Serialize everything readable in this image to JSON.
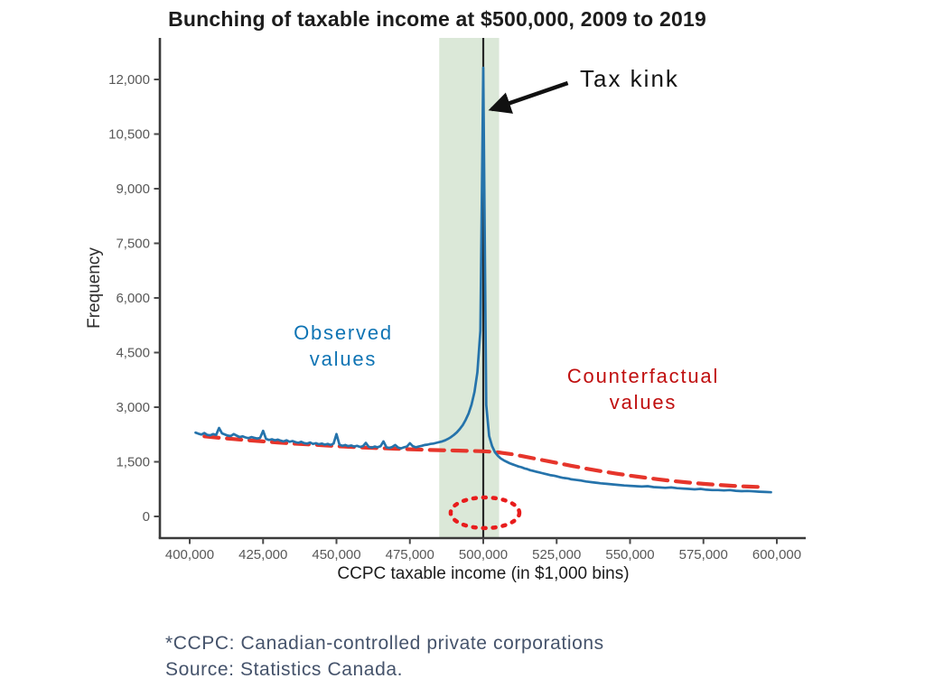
{
  "chart_data": {
    "type": "line",
    "title": "Bunching of taxable income at $500,000, 2009 to 2019",
    "xlabel": "CCPC taxable income (in $1,000 bins)",
    "ylabel": "Frequency",
    "x_units_note": "x values listed in $1,000s",
    "xlim_k": [
      390,
      610
    ],
    "ylim": [
      0,
      12600
    ],
    "grid": false,
    "legend": "none (inline colored text labels instead)",
    "x_axis": {
      "tick_values_k": [
        400,
        425,
        450,
        475,
        500,
        525,
        550,
        575,
        600
      ],
      "tick_labels": [
        "400,000",
        "425,000",
        "450,000",
        "475,000",
        "500,000",
        "525,000",
        "550,000",
        "575,000",
        "600,000"
      ]
    },
    "y_axis": {
      "tick_values": [
        0,
        1500,
        3000,
        4500,
        6000,
        7500,
        9000,
        10500,
        12000
      ],
      "tick_labels": [
        "0",
        "1,500",
        "3,000",
        "4,500",
        "6,000",
        "7,500",
        "9,000",
        "10,500",
        "12,000"
      ]
    },
    "bunching_window": {
      "x0_k": 485,
      "x1_k": 505.4,
      "color": "#dbe8d8"
    },
    "kink_line_x_k": 500,
    "kink_line_color": "#262626",
    "series": [
      {
        "name": "Observed values",
        "color": "#2573ab",
        "style": "solid",
        "points": [
          [
            402,
            2300
          ],
          [
            403,
            2270
          ],
          [
            404,
            2250
          ],
          [
            405,
            2290
          ],
          [
            406,
            2240
          ],
          [
            407,
            2230
          ],
          [
            408,
            2260
          ],
          [
            409,
            2240
          ],
          [
            410,
            2430
          ],
          [
            411,
            2280
          ],
          [
            412,
            2250
          ],
          [
            413,
            2220
          ],
          [
            414,
            2210
          ],
          [
            415,
            2260
          ],
          [
            416,
            2220
          ],
          [
            417,
            2180
          ],
          [
            418,
            2200
          ],
          [
            419,
            2170
          ],
          [
            420,
            2150
          ],
          [
            421,
            2180
          ],
          [
            422,
            2160
          ],
          [
            423,
            2140
          ],
          [
            424,
            2160
          ],
          [
            425,
            2350
          ],
          [
            426,
            2130
          ],
          [
            427,
            2100
          ],
          [
            428,
            2120
          ],
          [
            429,
            2090
          ],
          [
            430,
            2110
          ],
          [
            431,
            2080
          ],
          [
            432,
            2060
          ],
          [
            433,
            2090
          ],
          [
            434,
            2050
          ],
          [
            435,
            2070
          ],
          [
            436,
            2040
          ],
          [
            437,
            2020
          ],
          [
            438,
            2050
          ],
          [
            439,
            2010
          ],
          [
            440,
            2000
          ],
          [
            441,
            2030
          ],
          [
            442,
            1990
          ],
          [
            443,
            2010
          ],
          [
            444,
            1980
          ],
          [
            445,
            2000
          ],
          [
            446,
            1970
          ],
          [
            447,
            1990
          ],
          [
            448,
            1960
          ],
          [
            449,
            2000
          ],
          [
            450,
            2260
          ],
          [
            451,
            1970
          ],
          [
            452,
            1940
          ],
          [
            453,
            1960
          ],
          [
            454,
            1930
          ],
          [
            455,
            1950
          ],
          [
            456,
            1920
          ],
          [
            457,
            1940
          ],
          [
            458,
            1910
          ],
          [
            459,
            1930
          ],
          [
            460,
            2020
          ],
          [
            461,
            1910
          ],
          [
            462,
            1890
          ],
          [
            463,
            1920
          ],
          [
            464,
            1900
          ],
          [
            465,
            1930
          ],
          [
            466,
            2060
          ],
          [
            467,
            1900
          ],
          [
            468,
            1880
          ],
          [
            469,
            1910
          ],
          [
            470,
            1960
          ],
          [
            471,
            1890
          ],
          [
            472,
            1870
          ],
          [
            473,
            1900
          ],
          [
            474,
            1920
          ],
          [
            475,
            2010
          ],
          [
            476,
            1930
          ],
          [
            477,
            1900
          ],
          [
            478,
            1920
          ],
          [
            479,
            1940
          ],
          [
            480,
            1960
          ],
          [
            481,
            1970
          ],
          [
            482,
            1990
          ],
          [
            483,
            2000
          ],
          [
            484,
            2020
          ],
          [
            485,
            2040
          ],
          [
            486,
            2060
          ],
          [
            487,
            2090
          ],
          [
            488,
            2130
          ],
          [
            489,
            2180
          ],
          [
            490,
            2240
          ],
          [
            491,
            2310
          ],
          [
            492,
            2400
          ],
          [
            493,
            2510
          ],
          [
            494,
            2650
          ],
          [
            495,
            2830
          ],
          [
            496,
            3070
          ],
          [
            497,
            3420
          ],
          [
            498,
            3960
          ],
          [
            499,
            5100
          ],
          [
            500,
            12320
          ],
          [
            501,
            3060
          ],
          [
            502,
            2210
          ],
          [
            503,
            1930
          ],
          [
            504,
            1760
          ],
          [
            505,
            1660
          ],
          [
            506,
            1590
          ],
          [
            507,
            1540
          ],
          [
            508,
            1500
          ],
          [
            509,
            1460
          ],
          [
            510,
            1430
          ],
          [
            511,
            1400
          ],
          [
            512,
            1370
          ],
          [
            513,
            1350
          ],
          [
            514,
            1320
          ],
          [
            515,
            1300
          ],
          [
            516,
            1270
          ],
          [
            517,
            1250
          ],
          [
            518,
            1230
          ],
          [
            519,
            1210
          ],
          [
            520,
            1190
          ],
          [
            521,
            1170
          ],
          [
            522,
            1150
          ],
          [
            523,
            1130
          ],
          [
            524,
            1120
          ],
          [
            525,
            1100
          ],
          [
            526,
            1080
          ],
          [
            527,
            1060
          ],
          [
            528,
            1050
          ],
          [
            529,
            1040
          ],
          [
            530,
            1020
          ],
          [
            531,
            1010
          ],
          [
            532,
            1000
          ],
          [
            533,
            990
          ],
          [
            534,
            975
          ],
          [
            535,
            960
          ],
          [
            536,
            950
          ],
          [
            537,
            940
          ],
          [
            538,
            930
          ],
          [
            539,
            920
          ],
          [
            540,
            910
          ],
          [
            542,
            895
          ],
          [
            544,
            880
          ],
          [
            546,
            865
          ],
          [
            548,
            850
          ],
          [
            550,
            840
          ],
          [
            552,
            830
          ],
          [
            554,
            820
          ],
          [
            556,
            830
          ],
          [
            558,
            805
          ],
          [
            560,
            795
          ],
          [
            562,
            785
          ],
          [
            564,
            795
          ],
          [
            566,
            775
          ],
          [
            568,
            765
          ],
          [
            570,
            755
          ],
          [
            572,
            745
          ],
          [
            574,
            755
          ],
          [
            576,
            735
          ],
          [
            578,
            725
          ],
          [
            580,
            725
          ],
          [
            582,
            715
          ],
          [
            584,
            725
          ],
          [
            586,
            705
          ],
          [
            588,
            695
          ],
          [
            590,
            700
          ],
          [
            592,
            690
          ],
          [
            594,
            680
          ],
          [
            596,
            672
          ],
          [
            598,
            665
          ]
        ]
      },
      {
        "name": "Counterfactual values",
        "color": "#e6352b",
        "style": "dashed",
        "points": [
          [
            405,
            2200
          ],
          [
            410,
            2160
          ],
          [
            415,
            2125
          ],
          [
            420,
            2090
          ],
          [
            425,
            2060
          ],
          [
            430,
            2030
          ],
          [
            435,
            2000
          ],
          [
            440,
            1980
          ],
          [
            445,
            1955
          ],
          [
            450,
            1930
          ],
          [
            455,
            1910
          ],
          [
            460,
            1890
          ],
          [
            465,
            1875
          ],
          [
            470,
            1860
          ],
          [
            475,
            1845
          ],
          [
            480,
            1830
          ],
          [
            485,
            1820
          ],
          [
            490,
            1810
          ],
          [
            495,
            1800
          ],
          [
            500,
            1790
          ],
          [
            503,
            1775
          ],
          [
            506,
            1750
          ],
          [
            510,
            1705
          ],
          [
            515,
            1630
          ],
          [
            520,
            1550
          ],
          [
            525,
            1470
          ],
          [
            530,
            1390
          ],
          [
            535,
            1315
          ],
          [
            540,
            1245
          ],
          [
            545,
            1180
          ],
          [
            550,
            1120
          ],
          [
            555,
            1065
          ],
          [
            560,
            1015
          ],
          [
            565,
            970
          ],
          [
            570,
            930
          ],
          [
            575,
            895
          ],
          [
            580,
            865
          ],
          [
            585,
            840
          ],
          [
            590,
            820
          ],
          [
            595,
            805
          ]
        ]
      }
    ],
    "missing_mass_ellipse": {
      "cx_k": 500.6,
      "cy": 100,
      "rx_k": 11.7,
      "ry": 420,
      "color": "#e81c1c"
    }
  },
  "annotations": {
    "tax_kink": {
      "text": "Tax kink",
      "color": "#141414",
      "arrow": {
        "from_k": [
          528.8,
          11900
        ],
        "to_k": [
          502.8,
          11180
        ],
        "color": "#111111"
      }
    },
    "observed_label": {
      "text": "Observed values",
      "color": "#0f74b4"
    },
    "counterfactual_label": {
      "text": "Counterfactual values",
      "color": "#c00f0f"
    }
  },
  "footnote": {
    "line1": "*CCPC: Canadian-controlled private corporations",
    "line2": "Source: Statistics Canada.",
    "color": "#45536b"
  }
}
